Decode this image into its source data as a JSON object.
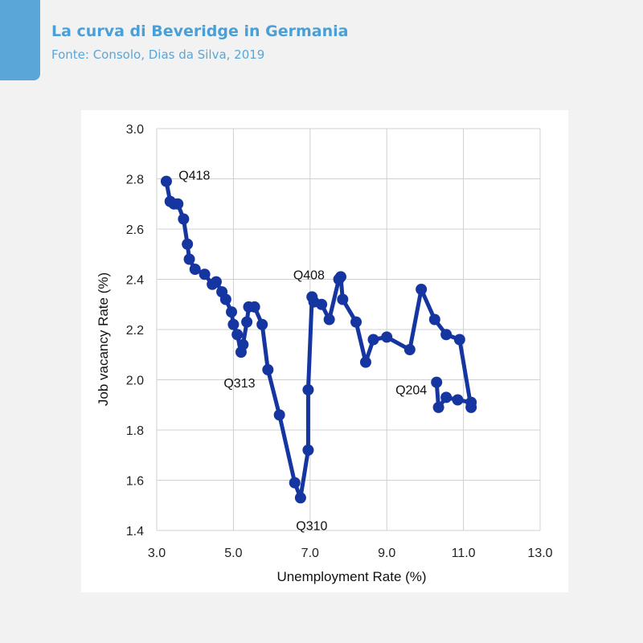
{
  "header": {
    "title": "La curva di Beveridge in Germania",
    "subtitle": "Fonte: Consolo, Dias da Silva, 2019"
  },
  "colors": {
    "accent": "#5aa6d8",
    "series": "#1535a0"
  },
  "chart_data": {
    "type": "line",
    "xlabel": "Unemployment Rate (%)",
    "ylabel": "Job vacancy Rate (%)",
    "xlim": [
      3.0,
      13.0
    ],
    "ylim": [
      1.4,
      3.0
    ],
    "xticks": [
      "3.0",
      "5.0",
      "7.0",
      "9.0",
      "11.0",
      "13.0"
    ],
    "yticks": [
      "1.4",
      "1.6",
      "1.8",
      "2.0",
      "2.2",
      "2.4",
      "2.6",
      "2.8",
      "3.0"
    ],
    "grid": true,
    "markers": true,
    "series": [
      {
        "points": [
          [
            10.3,
            1.99
          ],
          [
            10.35,
            1.89
          ],
          [
            10.55,
            1.93
          ],
          [
            10.85,
            1.92
          ],
          [
            11.2,
            1.91
          ],
          [
            11.2,
            1.89
          ],
          [
            10.9,
            2.16
          ],
          [
            10.55,
            2.18
          ],
          [
            10.25,
            2.24
          ],
          [
            9.9,
            2.36
          ],
          [
            9.6,
            2.12
          ],
          [
            9.0,
            2.17
          ],
          [
            8.65,
            2.16
          ],
          [
            8.45,
            2.07
          ],
          [
            8.2,
            2.23
          ],
          [
            7.85,
            2.32
          ],
          [
            7.8,
            2.41
          ],
          [
            7.75,
            2.4
          ],
          [
            7.5,
            2.24
          ],
          [
            7.3,
            2.3
          ],
          [
            7.1,
            2.31
          ],
          [
            7.05,
            2.33
          ],
          [
            6.95,
            1.96
          ],
          [
            6.95,
            1.72
          ],
          [
            6.75,
            1.53
          ],
          [
            6.6,
            1.59
          ],
          [
            6.2,
            1.86
          ],
          [
            5.9,
            2.04
          ],
          [
            5.75,
            2.22
          ],
          [
            5.55,
            2.29
          ],
          [
            5.4,
            2.29
          ],
          [
            5.35,
            2.23
          ],
          [
            5.25,
            2.14
          ],
          [
            5.2,
            2.11
          ],
          [
            5.1,
            2.18
          ],
          [
            5.0,
            2.22
          ],
          [
            4.95,
            2.27
          ],
          [
            4.8,
            2.32
          ],
          [
            4.7,
            2.35
          ],
          [
            4.55,
            2.39
          ],
          [
            4.45,
            2.38
          ],
          [
            4.25,
            2.42
          ],
          [
            4.0,
            2.44
          ],
          [
            3.85,
            2.48
          ],
          [
            3.8,
            2.54
          ],
          [
            3.7,
            2.64
          ],
          [
            3.55,
            2.7
          ],
          [
            3.45,
            2.7
          ],
          [
            3.35,
            2.71
          ],
          [
            3.25,
            2.79
          ]
        ]
      }
    ],
    "annotations": [
      {
        "label": "Q418",
        "x": 3.3,
        "y": 2.79
      },
      {
        "label": "Q408",
        "x": 7.8,
        "y": 2.41
      },
      {
        "label": "Q313",
        "x": 5.2,
        "y": 2.11
      },
      {
        "label": "Q204",
        "x": 10.3,
        "y": 1.99
      },
      {
        "label": "Q310",
        "x": 6.75,
        "y": 1.53
      }
    ]
  }
}
